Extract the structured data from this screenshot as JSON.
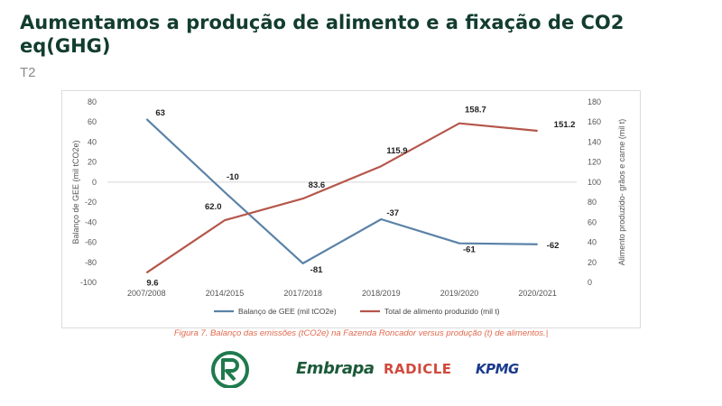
{
  "header": {
    "title": "Aumentamos a produção de alimento e a fixação de CO2 eq(GHG)",
    "subtitle": "T2"
  },
  "caption": "Figura 7. Balanço das emissões (tCO2e) na Fazenda Roncador versus produção (t) de alimentos.|",
  "logos": {
    "embrapa": "Embrapa",
    "radicle": "RADICLE",
    "kpmg": "KPMG"
  },
  "chart_data": {
    "type": "line",
    "categories": [
      "2007/2008",
      "2014/2015",
      "2017/2018",
      "2018/2019",
      "2019/2020",
      "2020/2021"
    ],
    "series": [
      {
        "name": "Balanço de GEE (mil tCO2e)",
        "axis": "left",
        "color": "#5b82a8",
        "values": [
          63,
          -10,
          -81,
          -37,
          -61,
          -62
        ],
        "labels": [
          "63",
          "-10",
          "-81",
          "-37",
          "-61",
          "-62"
        ]
      },
      {
        "name": "Total de alimento produzido (mil t)",
        "axis": "right",
        "color": "#b5564b",
        "values": [
          9.6,
          62.0,
          83.6,
          115.9,
          158.7,
          151.2
        ],
        "labels": [
          "9.6",
          "62.0",
          "83.6",
          "115.9",
          "158.7",
          "151.2"
        ]
      }
    ],
    "ylabel_left": "Balanço de GEE (mil tCO2e)",
    "ylabel_right": "Alimento produzido- grãos e carne (mil t)",
    "ylim_left": [
      -100,
      80
    ],
    "yticks_left": [
      "80",
      "60",
      "40",
      "20",
      "0",
      "-20",
      "-40",
      "-60",
      "-80",
      "-100"
    ],
    "ylim_right": [
      0,
      180
    ],
    "yticks_right": [
      "180",
      "160",
      "140",
      "120",
      "100",
      "80",
      "60",
      "40",
      "20",
      "0"
    ],
    "grid": false,
    "legend": "bottom"
  }
}
